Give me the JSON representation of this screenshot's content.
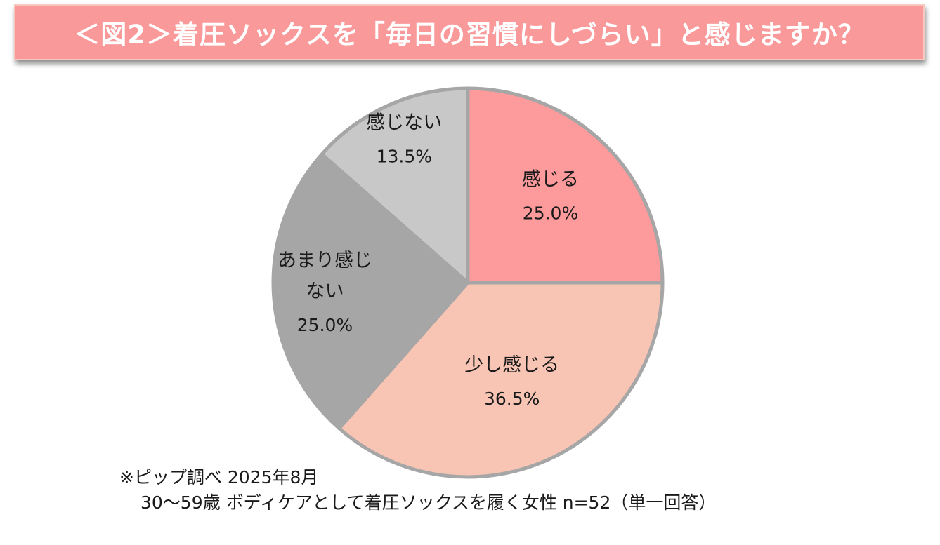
{
  "title": "＜図2＞着圧ソックスを「毎日の習慣にしづらい」と感じますか？",
  "colors": {
    "banner": "#f9999a",
    "border": "#a6a6a6"
  },
  "chart_data": {
    "type": "pie",
    "title": "＜図2＞着圧ソックスを「毎日の習慣にしづらい」と感じますか？",
    "slices": [
      {
        "label": "感じる",
        "value": 25.0,
        "display": "25.0%",
        "color": "#fd9a9b"
      },
      {
        "label": "少し感じる",
        "value": 36.5,
        "display": "36.5%",
        "color": "#f8c5b5"
      },
      {
        "label": "あまり感じ\nない",
        "value": 25.0,
        "display": "25.0%",
        "color": "#a6a6a6"
      },
      {
        "label": "感じない",
        "value": 13.5,
        "display": "13.5%",
        "color": "#c8c8c8"
      }
    ],
    "start_angle": "12 o'clock",
    "direction": "clockwise"
  },
  "source": {
    "line1": "※ピップ調べ  2025年8月",
    "line2": "30〜59歳 ボディケアとして着圧ソックスを履く女性 n=52（単一回答）"
  }
}
